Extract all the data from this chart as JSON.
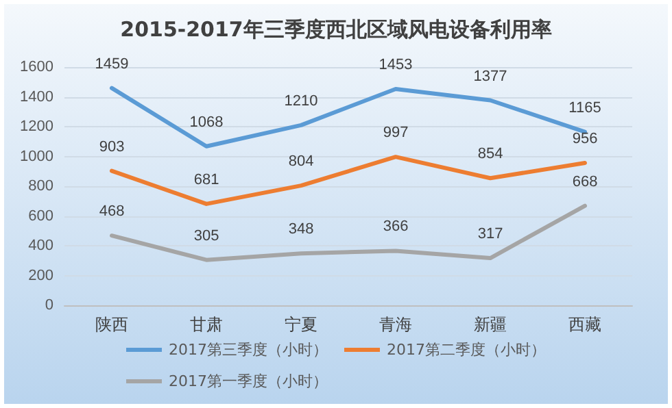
{
  "chart_data": {
    "type": "line",
    "title": "2015-2017年三季度西北区域风电设备利用率",
    "categories": [
      "陕西",
      "甘肃",
      "宁夏",
      "青海",
      "新疆",
      "西藏"
    ],
    "series": [
      {
        "name": "2017第三季度（小时）",
        "color": "#5b9bd5",
        "values": [
          1459,
          1068,
          1210,
          1453,
          1377,
          1165
        ]
      },
      {
        "name": "2017第二季度（小时）",
        "color": "#ed7d31",
        "values": [
          903,
          681,
          804,
          997,
          854,
          956
        ]
      },
      {
        "name": "2017第一季度（小时）",
        "color": "#a5a5a5",
        "values": [
          468,
          305,
          348,
          366,
          317,
          668
        ]
      }
    ],
    "ylim": [
      0,
      1600
    ],
    "yticks": [
      0,
      200,
      400,
      600,
      800,
      1000,
      1200,
      1400,
      1600
    ],
    "grid": "y",
    "legend": "bottom",
    "data_labels": true,
    "marker": "none",
    "line_style": "solid"
  }
}
